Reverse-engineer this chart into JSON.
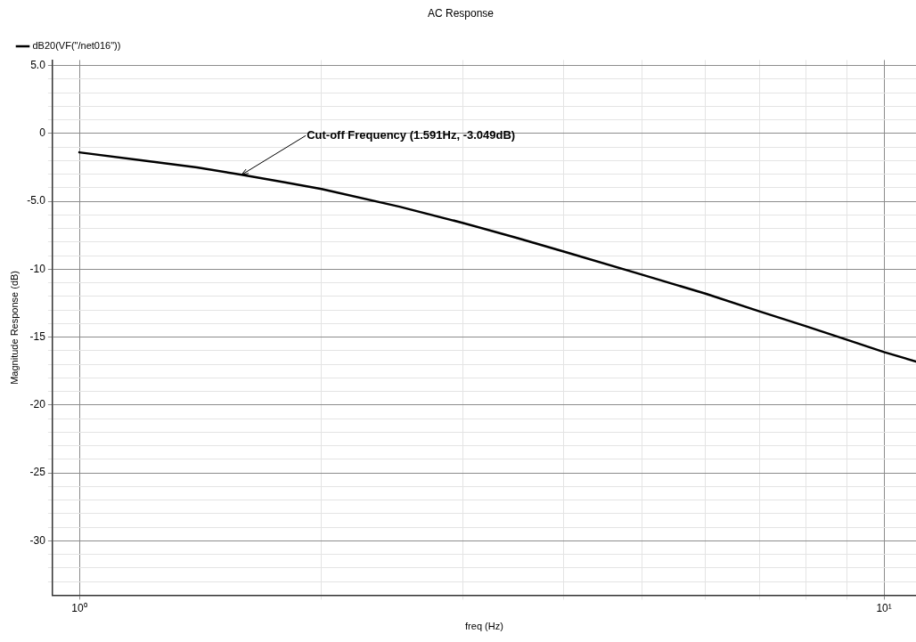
{
  "chart_data": {
    "type": "line",
    "title": "AC Response",
    "xlabel": "freq (Hz)",
    "ylabel": "Magnitude Response (dB)",
    "log": "x",
    "grid": true,
    "legend": "top left",
    "marker": "none",
    "line_style": "solid",
    "xlim": [
      0.926,
      10.96
    ],
    "xticks": [
      {
        "value": 1,
        "label": "10⁰"
      },
      {
        "value": 2,
        "label": null
      },
      {
        "value": 3,
        "label": null
      },
      {
        "value": 4,
        "label": null
      },
      {
        "value": 5,
        "label": null
      },
      {
        "value": 6,
        "label": null
      },
      {
        "value": 7,
        "label": null
      },
      {
        "value": 8,
        "label": null
      },
      {
        "value": 9,
        "label": null
      },
      {
        "value": 10,
        "label": "10¹"
      }
    ],
    "ylim": [
      -34,
      5.4
    ],
    "yticks": [
      {
        "value": 5,
        "label": "5.0"
      },
      {
        "value": 4,
        "label": null
      },
      {
        "value": 3,
        "label": null
      },
      {
        "value": 2,
        "label": null
      },
      {
        "value": 1,
        "label": null
      },
      0,
      {
        "value": -1,
        "label": null
      },
      {
        "value": -2,
        "label": null
      },
      {
        "value": -3,
        "label": null
      },
      {
        "value": -4,
        "label": null
      },
      {
        "value": -5,
        "label": "-5.0"
      },
      {
        "value": -6,
        "label": null
      },
      {
        "value": -7,
        "label": null
      },
      {
        "value": -8,
        "label": null
      },
      {
        "value": -9,
        "label": null
      },
      -10,
      {
        "value": -11,
        "label": null
      },
      {
        "value": -12,
        "label": null
      },
      {
        "value": -13,
        "label": null
      },
      {
        "value": -14,
        "label": null
      },
      -15,
      {
        "value": -16,
        "label": null
      },
      {
        "value": -17,
        "label": null
      },
      {
        "value": -18,
        "label": null
      },
      {
        "value": -19,
        "label": null
      },
      -20,
      {
        "value": -21,
        "label": null
      },
      {
        "value": -22,
        "label": null
      },
      {
        "value": -23,
        "label": null
      },
      {
        "value": -24,
        "label": null
      },
      -25,
      {
        "value": -26,
        "label": null
      },
      {
        "value": -27,
        "label": null
      },
      {
        "value": -28,
        "label": null
      },
      {
        "value": -29,
        "label": null
      },
      -30,
      {
        "value": -31,
        "label": null
      },
      {
        "value": -32,
        "label": null
      },
      {
        "value": -33,
        "label": null
      }
    ],
    "annotations": [
      {
        "text": "Cut-off Frequency (1.591Hz, -3.049dB)",
        "x": 1.591,
        "y": -3.049
      }
    ],
    "series": [
      {
        "name": "dB20(VF(\"/net016\"))",
        "color": "#000000",
        "x": [
          1,
          1.2,
          1.4,
          1.591,
          1.8,
          2,
          2.5,
          3,
          3.5,
          4,
          5,
          6,
          7,
          8,
          9,
          10,
          10.96
        ],
        "values": [
          -1.4,
          -2.0,
          -2.5,
          -3.05,
          -3.6,
          -4.1,
          -5.4,
          -6.6,
          -7.7,
          -8.7,
          -10.4,
          -11.8,
          -13.1,
          -14.2,
          -15.2,
          -16.1,
          -16.8
        ]
      }
    ]
  }
}
